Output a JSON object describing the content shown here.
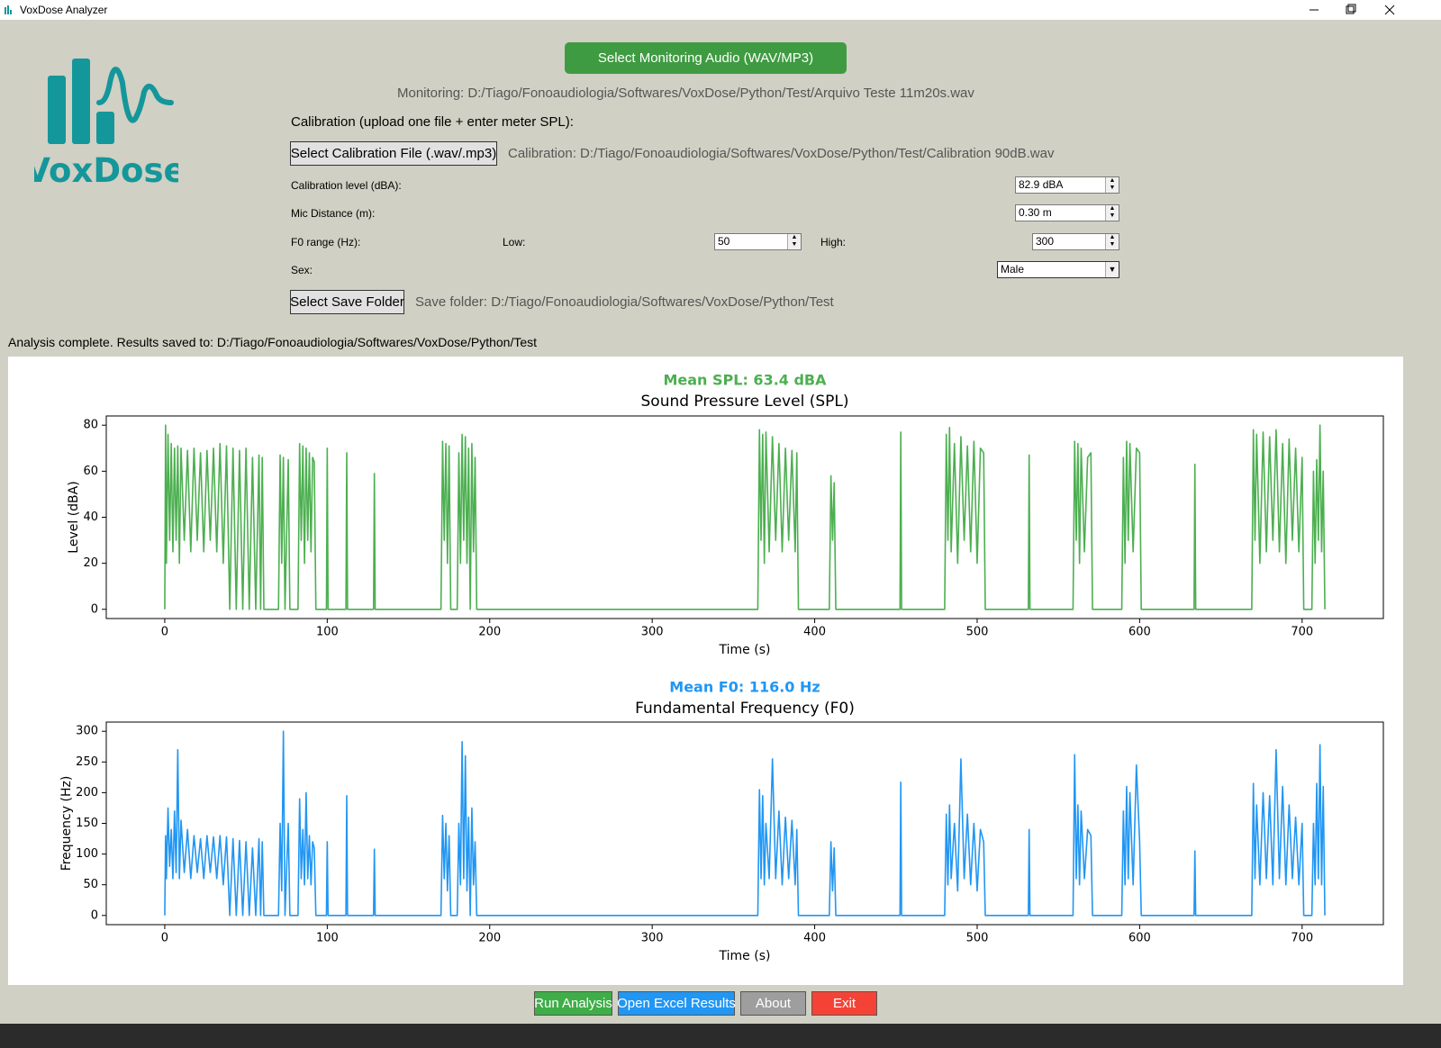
{
  "window": {
    "title": "VoxDose Analyzer"
  },
  "logo": "VoxDose",
  "monitoring": {
    "button": "Select Monitoring Audio (WAV/MP3)",
    "path": "Monitoring: D:/Tiago/Fonoaudiologia/Softwares/VoxDose/Python/Test/Arquivo Teste 11m20s.wav"
  },
  "calibration": {
    "heading": "Calibration (upload one file + enter meter SPL):",
    "button": "Select Calibration File (.wav/.mp3)",
    "path": "Calibration: D:/Tiago/Fonoaudiologia/Softwares/VoxDose/Python/Test/Calibration 90dB.wav"
  },
  "settings": {
    "calibration_level": {
      "label": "Calibration level (dBA):",
      "value": "82.9 dBA"
    },
    "mic_distance": {
      "label": "Mic Distance (m):",
      "value": "0.30 m"
    },
    "f0_range": {
      "label": "F0 range (Hz):",
      "low_label": "Low:",
      "low": 50,
      "high_label": "High:",
      "high": 300
    },
    "sex": {
      "label": "Sex:",
      "value": "Male"
    }
  },
  "save": {
    "button": "Select Save Folder",
    "path": "Save folder: D:/Tiago/Fonoaudiologia/Softwares/VoxDose/Python/Test"
  },
  "status": "Analysis complete. Results saved to: D:/Tiago/Fonoaudiologia/Softwares/VoxDose/Python/Test",
  "chart_data": [
    {
      "type": "line",
      "annotation": "Mean SPL: 63.4 dBA",
      "title": "Sound Pressure Level (SPL)",
      "x_label": "Time (s)",
      "y_label": "Level (dBA)",
      "color": "#4caf50",
      "x": [
        0,
        0.5,
        1,
        2,
        3,
        4,
        5,
        6,
        7,
        8,
        9,
        10,
        12,
        14,
        16,
        18,
        20,
        22,
        24,
        26,
        28,
        30,
        32,
        34,
        36,
        38,
        40,
        42,
        44,
        46,
        48,
        50,
        52,
        54,
        56,
        58,
        59,
        60,
        61,
        70,
        71,
        72,
        73,
        74,
        76,
        77,
        82,
        83,
        84,
        85,
        86,
        87,
        88,
        89,
        90,
        91,
        92,
        93,
        99.5,
        100,
        100.5,
        111.5,
        112,
        112.5,
        128.5,
        129,
        129.5,
        170,
        171,
        172,
        173,
        174,
        175,
        176,
        180,
        181,
        182,
        183,
        184,
        185,
        186,
        187,
        188,
        189,
        190,
        191,
        192,
        365,
        366,
        367,
        368,
        369,
        370,
        372,
        374,
        376,
        378,
        380,
        382,
        384,
        386,
        388,
        389,
        390,
        409,
        410,
        411,
        412,
        413,
        452.5,
        453,
        453.5,
        480,
        481,
        482,
        483,
        484,
        486,
        488,
        490,
        492,
        494,
        496,
        498,
        500,
        502,
        504,
        505,
        531.5,
        532,
        532.5,
        559,
        560,
        561,
        562,
        563,
        564,
        566,
        568,
        570,
        571,
        589,
        590,
        591,
        592,
        593,
        594,
        596,
        598,
        600,
        601,
        633.5,
        634,
        634.5,
        669,
        670,
        671,
        672,
        674,
        676,
        678,
        680,
        682,
        684,
        686,
        688,
        690,
        692,
        694,
        696,
        698,
        700,
        701,
        706,
        707,
        708,
        709,
        710,
        711,
        712,
        713,
        714
      ],
      "values": [
        0,
        80,
        20,
        76,
        30,
        72,
        25,
        70,
        30,
        71,
        20,
        70,
        30,
        69,
        25,
        70,
        30,
        68,
        25,
        69,
        30,
        70,
        25,
        72,
        20,
        71,
        0,
        70,
        0,
        69,
        0,
        70,
        0,
        66,
        0,
        67,
        0,
        66,
        0,
        0,
        67,
        20,
        66,
        0,
        65,
        0,
        0,
        72,
        30,
        71,
        20,
        70,
        30,
        68,
        25,
        66,
        64,
        0,
        0,
        70,
        0,
        0,
        68,
        0,
        0,
        59,
        0,
        0,
        73,
        30,
        72,
        20,
        71,
        0,
        0,
        68,
        20,
        76,
        30,
        75,
        20,
        70,
        0,
        72,
        25,
        66,
        0,
        0,
        78,
        30,
        76,
        20,
        77,
        25,
        75,
        30,
        72,
        25,
        70,
        30,
        69,
        25,
        68,
        0,
        0,
        58,
        30,
        55,
        0,
        0,
        77,
        0,
        0,
        76,
        30,
        79,
        25,
        72,
        20,
        75,
        30,
        71,
        25,
        73,
        20,
        70,
        68,
        0,
        0,
        67,
        0,
        0,
        73,
        30,
        72,
        20,
        70,
        25,
        66,
        68,
        0,
        0,
        66,
        20,
        73,
        30,
        72,
        25,
        70,
        68,
        0,
        0,
        63,
        0,
        0,
        78,
        30,
        76,
        20,
        77,
        25,
        75,
        30,
        78,
        25,
        72,
        20,
        74,
        30,
        70,
        25,
        66,
        0,
        0,
        60,
        20,
        65,
        30,
        80,
        25,
        60,
        0
      ],
      "xlim": [
        -36,
        750
      ],
      "ylim": [
        -4,
        84
      ],
      "xticks": [
        0,
        100,
        200,
        300,
        400,
        500,
        600,
        700
      ],
      "yticks": [
        0,
        20,
        40,
        60,
        80
      ]
    },
    {
      "type": "line",
      "annotation": "Mean F0: 116.0 Hz",
      "title": "Fundamental Frequency (F0)",
      "x_label": "Time (s)",
      "y_label": "Frequency (Hz)",
      "color": "#2196f3",
      "x": [
        0,
        0.5,
        1,
        2,
        3,
        4,
        5,
        6,
        7,
        8,
        9,
        10,
        12,
        14,
        16,
        18,
        20,
        22,
        24,
        26,
        28,
        30,
        32,
        34,
        36,
        38,
        40,
        42,
        44,
        46,
        48,
        50,
        52,
        54,
        56,
        58,
        59,
        60,
        61,
        70,
        71,
        72,
        73,
        74,
        76,
        77,
        82,
        83,
        84,
        85,
        86,
        87,
        88,
        89,
        90,
        91,
        92,
        93,
        99.5,
        100,
        100.5,
        111.5,
        112,
        112.5,
        128.5,
        129,
        129.5,
        170,
        171,
        172,
        173,
        174,
        175,
        176,
        180,
        181,
        182,
        183,
        184,
        185,
        186,
        187,
        188,
        189,
        190,
        191,
        192,
        365,
        366,
        367,
        368,
        369,
        370,
        372,
        374,
        376,
        378,
        380,
        382,
        384,
        386,
        388,
        389,
        390,
        409,
        410,
        411,
        412,
        413,
        452.5,
        453,
        453.5,
        480,
        481,
        482,
        483,
        484,
        486,
        488,
        490,
        492,
        494,
        496,
        498,
        500,
        502,
        504,
        505,
        531.5,
        532,
        532.5,
        559,
        560,
        561,
        562,
        563,
        564,
        566,
        568,
        570,
        571,
        589,
        590,
        591,
        592,
        593,
        594,
        596,
        598,
        600,
        601,
        633.5,
        634,
        634.5,
        669,
        670,
        671,
        672,
        674,
        676,
        678,
        680,
        682,
        684,
        686,
        688,
        690,
        692,
        694,
        696,
        698,
        700,
        701,
        706,
        707,
        708,
        709,
        710,
        711,
        712,
        713,
        714
      ],
      "values": [
        0,
        130,
        60,
        175,
        80,
        140,
        60,
        170,
        70,
        270,
        60,
        155,
        70,
        140,
        60,
        130,
        70,
        125,
        60,
        130,
        70,
        128,
        60,
        130,
        50,
        128,
        0,
        125,
        0,
        122,
        0,
        120,
        0,
        110,
        0,
        125,
        0,
        120,
        0,
        0,
        150,
        40,
        300,
        0,
        150,
        0,
        0,
        190,
        60,
        140,
        50,
        200,
        60,
        130,
        50,
        120,
        110,
        0,
        0,
        120,
        0,
        0,
        195,
        0,
        0,
        108,
        0,
        0,
        163,
        60,
        150,
        40,
        130,
        0,
        0,
        150,
        50,
        283,
        60,
        260,
        40,
        160,
        0,
        175,
        50,
        120,
        0,
        0,
        205,
        60,
        195,
        50,
        150,
        60,
        255,
        60,
        170,
        50,
        160,
        60,
        155,
        50,
        140,
        0,
        0,
        120,
        40,
        110,
        0,
        0,
        217,
        0,
        0,
        165,
        50,
        180,
        60,
        150,
        40,
        255,
        60,
        165,
        50,
        150,
        40,
        140,
        120,
        0,
        0,
        140,
        0,
        0,
        262,
        60,
        180,
        50,
        170,
        60,
        140,
        130,
        0,
        0,
        170,
        50,
        210,
        60,
        200,
        50,
        245,
        120,
        0,
        0,
        105,
        0,
        0,
        215,
        60,
        180,
        50,
        200,
        60,
        195,
        50,
        270,
        60,
        210,
        50,
        180,
        60,
        160,
        50,
        150,
        0,
        0,
        150,
        50,
        215,
        60,
        278,
        50,
        210,
        0
      ],
      "xlim": [
        -36,
        750
      ],
      "ylim": [
        -15,
        315
      ],
      "xticks": [
        0,
        100,
        200,
        300,
        400,
        500,
        600,
        700
      ],
      "yticks": [
        0,
        50,
        100,
        150,
        200,
        250,
        300
      ]
    }
  ],
  "actions": [
    "Run Analysis",
    "Open Excel Results",
    "About",
    "Exit"
  ]
}
